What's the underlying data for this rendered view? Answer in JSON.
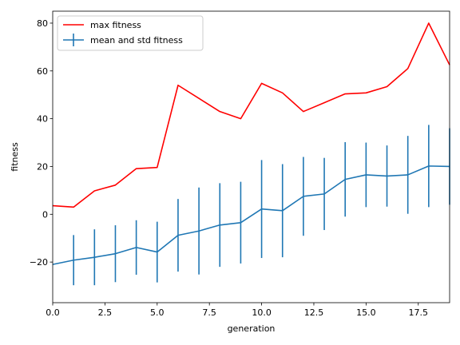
{
  "chart_data": {
    "type": "line",
    "title": "",
    "xlabel": "generation",
    "ylabel": "fitness",
    "xlim": [
      0,
      19
    ],
    "ylim": [
      -37,
      85
    ],
    "x_ticks": [
      0.0,
      2.5,
      5.0,
      7.5,
      10.0,
      12.5,
      15.0,
      17.5
    ],
    "x_tick_labels": [
      "0.0",
      "2.5",
      "5.0",
      "7.5",
      "10.0",
      "12.5",
      "15.0",
      "17.5"
    ],
    "y_ticks": [
      -20,
      0,
      20,
      40,
      60,
      80
    ],
    "y_tick_labels": [
      "−20",
      "0",
      "20",
      "40",
      "60",
      "80"
    ],
    "grid": false,
    "legend_position": "top-left",
    "x": [
      0,
      1,
      2,
      3,
      4,
      5,
      6,
      7,
      8,
      9,
      10,
      11,
      12,
      13,
      14,
      15,
      16,
      17,
      18,
      19
    ],
    "series": [
      {
        "name": "max fitness",
        "color": "#ff0000",
        "values": [
          3.6,
          3.0,
          9.8,
          12.2,
          19.1,
          19.6,
          54.0,
          48.5,
          43.0,
          40.0,
          54.8,
          50.8,
          43.0,
          46.7,
          50.4,
          50.8,
          53.4,
          61.0,
          80.0,
          62.5
        ]
      },
      {
        "name": "mean and std fitness",
        "color": "#1f77b4",
        "values": [
          -21.0,
          -19.2,
          -18.0,
          -16.5,
          -13.9,
          -15.8,
          -8.8,
          -7.0,
          -4.5,
          -3.5,
          2.2,
          1.5,
          7.5,
          8.5,
          14.6,
          16.5,
          16.0,
          16.5,
          20.2,
          20.0
        ],
        "error": [
          null,
          10.5,
          11.7,
          11.9,
          11.4,
          12.7,
          15.2,
          18.2,
          17.5,
          17.1,
          20.5,
          19.5,
          16.5,
          15.1,
          15.6,
          13.5,
          12.8,
          16.3,
          17.2,
          16.0
        ]
      }
    ]
  }
}
